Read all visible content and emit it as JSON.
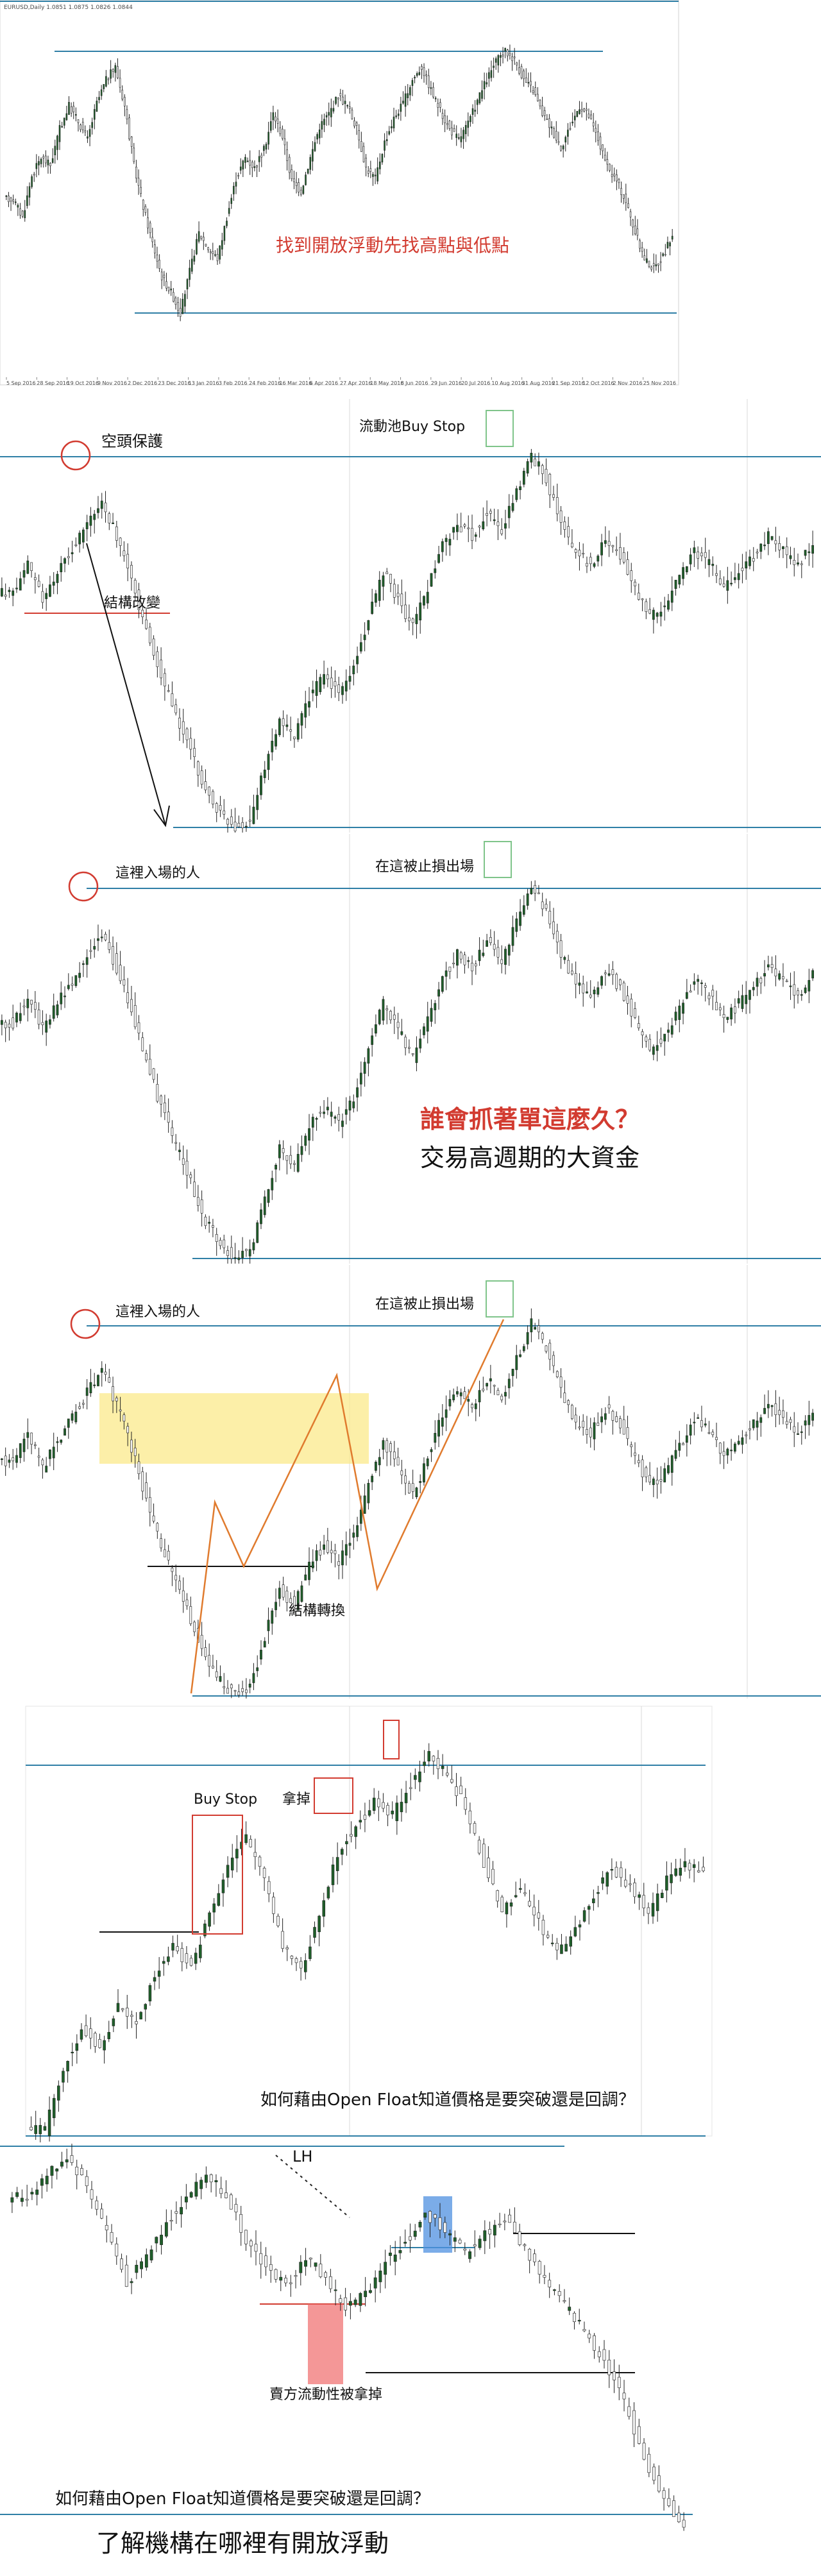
{
  "colors": {
    "up_candle": "#1f5f2a",
    "down_candle": "#222222",
    "wick": "#222222",
    "level_line": "#2f7fa6",
    "red_accent": "#d23b30",
    "green_box": "#7fc48a",
    "orange_line": "#e07b2e",
    "yellow_zone": "#fbe98b",
    "blue_box": "#4f90e0",
    "red_box": "#f06b6b",
    "axis_text": "#4a4a4a"
  },
  "panels": [
    {
      "id": "p1",
      "texts": [
        {
          "key": "header",
          "text": "EURUSD,Daily  1.0851 1.0875 1.0826 1.0844"
        },
        {
          "key": "caption",
          "text": "找到開放浮動先找高點與低點"
        }
      ],
      "x_tick_labels": [
        "5 Sep 2016",
        "28 Sep 2016",
        "19 Oct 2016",
        "9 Nov 2016",
        "2 Dec 2016",
        "23 Dec 2016",
        "13 Jan 2016",
        "3 Feb 2016",
        "24 Feb 2016",
        "16 Mar 2016",
        "6 Apr 2016",
        "27 Apr 2016",
        "18 May 2016",
        "8 Jun 2016",
        "29 Jun 2016",
        "20 Jul 2016",
        "10 Aug 2016",
        "31 Aug 2016",
        "21 Sep 2016",
        "12 Oct 2016",
        "2 Nov 2016",
        "25 Nov 2016"
      ]
    },
    {
      "id": "p2",
      "texts": [
        {
          "key": "short_protect",
          "text": "空頭保護"
        },
        {
          "key": "liquidity_pool",
          "text": "流動池Buy Stop"
        },
        {
          "key": "structure_change",
          "text": "結構改變"
        }
      ]
    },
    {
      "id": "p3",
      "texts": [
        {
          "key": "entered_here",
          "text": "這裡入場的人"
        },
        {
          "key": "stopped_here",
          "text": "在這被止損出場"
        },
        {
          "key": "question",
          "text": "誰會抓著單這麼久？"
        },
        {
          "key": "answer",
          "text": "交易高週期的大資金"
        }
      ]
    },
    {
      "id": "p4",
      "texts": [
        {
          "key": "entered_here",
          "text": "這裡入場的人"
        },
        {
          "key": "stopped_here",
          "text": "在這被止損出場"
        },
        {
          "key": "structure_shift",
          "text": "結構轉換"
        }
      ]
    },
    {
      "id": "p5",
      "texts": [
        {
          "key": "buy_stop",
          "text": "Buy Stop"
        },
        {
          "key": "taken",
          "text": "拿掉"
        },
        {
          "key": "question",
          "text": "如何藉由Open Float知道價格是要突破還是回調？"
        }
      ]
    },
    {
      "id": "p6",
      "texts": [
        {
          "key": "lh",
          "text": "LH"
        },
        {
          "key": "sell_liquidity",
          "text": "賣方流動性被拿掉"
        },
        {
          "key": "question",
          "text": "如何藉由Open Float知道價格是要突破還是回調？"
        },
        {
          "key": "conclusion",
          "text": "了解機構在哪裡有開放浮動"
        }
      ]
    }
  ],
  "chart_data": [
    {
      "type": "candlestick",
      "title": "",
      "series": [
        {
          "values": [
            1.085,
            1.078,
            1.094,
            1.101,
            1.098,
            1.112,
            1.121,
            1.115,
            1.108,
            1.122,
            1.131,
            1.136,
            1.121,
            1.098,
            1.082,
            1.068,
            1.055,
            1.049,
            1.041,
            1.057,
            1.072,
            1.066,
            1.062,
            1.078,
            1.093,
            1.101,
            1.097,
            1.104,
            1.118,
            1.109,
            1.092,
            1.088,
            1.101,
            1.113,
            1.118,
            1.125,
            1.121,
            1.112,
            1.097,
            1.093,
            1.107,
            1.116,
            1.122,
            1.131,
            1.136,
            1.127,
            1.119,
            1.112,
            1.108,
            1.114,
            1.123,
            1.131,
            1.138,
            1.142,
            1.139,
            1.131,
            1.127,
            1.118,
            1.112,
            1.105,
            1.113,
            1.121,
            1.117,
            1.108,
            1.097,
            1.092,
            1.084,
            1.072,
            1.062,
            1.058,
            1.063,
            1.071
          ]
        }
      ]
    },
    {
      "type": "candlestick",
      "title": "",
      "series": [
        {
          "values": [
            1.12,
            1.128,
            1.118,
            1.126,
            1.133,
            1.141,
            1.148,
            1.137,
            1.124,
            1.108,
            1.094,
            1.082,
            1.071,
            1.059,
            1.052,
            1.048,
            1.05,
            1.066,
            1.081,
            1.075,
            1.088,
            1.094,
            1.089,
            1.097,
            1.112,
            1.126,
            1.118,
            1.109,
            1.121,
            1.134,
            1.141,
            1.137,
            1.145,
            1.139,
            1.151,
            1.162,
            1.155,
            1.141,
            1.132,
            1.128,
            1.136,
            1.131,
            1.121,
            1.112,
            1.116,
            1.124,
            1.133,
            1.129,
            1.121,
            1.126,
            1.131,
            1.137,
            1.133,
            1.128,
            1.135
          ]
        }
      ]
    },
    {
      "type": "candlestick",
      "title": "",
      "series": [
        {
          "values": [
            1.12,
            1.128,
            1.118,
            1.126,
            1.133,
            1.141,
            1.148,
            1.137,
            1.124,
            1.108,
            1.094,
            1.082,
            1.071,
            1.059,
            1.052,
            1.048,
            1.05,
            1.066,
            1.081,
            1.075,
            1.088,
            1.094,
            1.089,
            1.097,
            1.112,
            1.126,
            1.118,
            1.109,
            1.121,
            1.134,
            1.141,
            1.137,
            1.145,
            1.139,
            1.151,
            1.162,
            1.155,
            1.141,
            1.132,
            1.128,
            1.136,
            1.131,
            1.121,
            1.112,
            1.116,
            1.124,
            1.133,
            1.129,
            1.121,
            1.126,
            1.131,
            1.137,
            1.133,
            1.128,
            1.135
          ]
        }
      ]
    },
    {
      "type": "candlestick",
      "title": "",
      "series": [
        {
          "values": [
            1.12,
            1.128,
            1.118,
            1.126,
            1.133,
            1.141,
            1.148,
            1.137,
            1.124,
            1.108,
            1.094,
            1.082,
            1.071,
            1.059,
            1.052,
            1.048,
            1.05,
            1.066,
            1.081,
            1.075,
            1.088,
            1.094,
            1.089,
            1.097,
            1.112,
            1.126,
            1.118,
            1.109,
            1.121,
            1.134,
            1.141,
            1.137,
            1.145,
            1.139,
            1.151,
            1.162,
            1.155,
            1.141,
            1.132,
            1.128,
            1.136,
            1.131,
            1.121,
            1.112,
            1.116,
            1.124,
            1.133,
            1.129,
            1.121,
            1.126,
            1.131,
            1.137,
            1.133,
            1.128,
            1.135
          ]
        }
      ]
    },
    {
      "type": "candlestick",
      "title": "",
      "series": [
        {
          "values": [
            1.061,
            1.075,
            1.083,
            1.079,
            1.088,
            1.084,
            1.095,
            1.101,
            1.096,
            1.108,
            1.118,
            1.124,
            1.116,
            1.101,
            1.096,
            1.108,
            1.121,
            1.127,
            1.132,
            1.129,
            1.136,
            1.142,
            1.138,
            1.131,
            1.119,
            1.109,
            1.113,
            1.106,
            1.099,
            1.104,
            1.112,
            1.118,
            1.114,
            1.108,
            1.115,
            1.119,
            1.117
          ]
        }
      ]
    },
    {
      "type": "candlestick",
      "title": "",
      "series": [
        {
          "values": [
            1.118,
            1.124,
            1.129,
            1.121,
            1.109,
            1.095,
            1.102,
            1.111,
            1.118,
            1.124,
            1.119,
            1.107,
            1.099,
            1.094,
            1.102,
            1.096,
            1.088,
            1.092,
            1.101,
            1.106,
            1.114,
            1.109,
            1.103,
            1.108,
            1.112,
            1.104,
            1.096,
            1.089,
            1.082,
            1.074,
            1.063,
            1.048,
            1.038,
            1.029
          ]
        }
      ]
    }
  ]
}
